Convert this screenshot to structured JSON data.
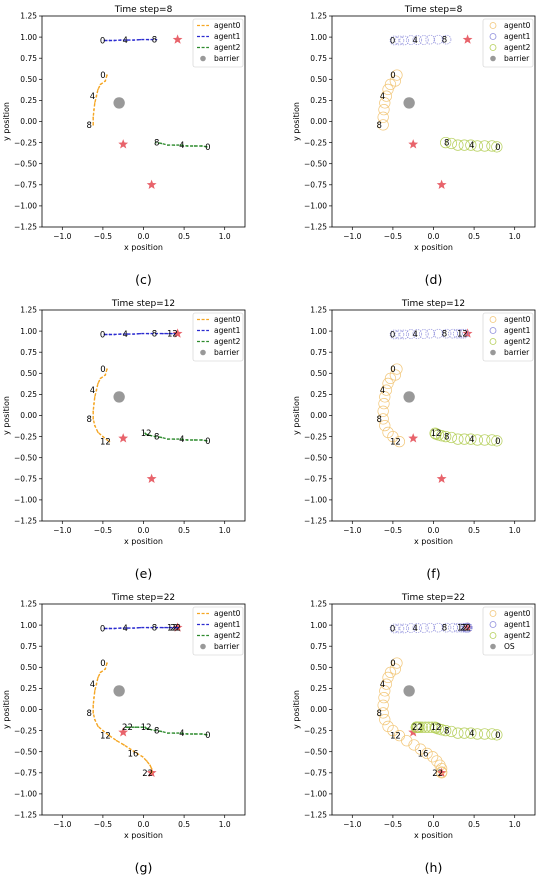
{
  "panels": [
    {
      "label": "(c)",
      "title": "Time step=8",
      "style": "line",
      "x_label": "x position",
      "y_label": "y position",
      "legend": [
        "agent0",
        "agent1",
        "agent2",
        "barrier"
      ]
    },
    {
      "label": "(d)",
      "title": "Time step=8",
      "style": "circle",
      "x_label": "x position",
      "y_label": "y position",
      "legend": [
        "agent0",
        "agent1",
        "agent2",
        "barrier"
      ]
    },
    {
      "label": "(e)",
      "title": "Time step=12",
      "style": "line",
      "x_label": "x position",
      "y_label": "y position",
      "legend": [
        "agent0",
        "agent1",
        "agent2",
        "barrier"
      ]
    },
    {
      "label": "(f)",
      "title": "Time step=12",
      "style": "circle",
      "x_label": "x position",
      "y_label": "y position",
      "legend": [
        "agent0",
        "agent1",
        "agent2",
        "barrier"
      ]
    },
    {
      "label": "(g)",
      "title": "Time step=22",
      "style": "line",
      "x_label": "x position",
      "y_label": "y position",
      "legend": [
        "agent0",
        "agent1",
        "agent2",
        "barrier"
      ]
    },
    {
      "label": "(h)",
      "title": "Time step=22",
      "style": "circle",
      "x_label": "x position",
      "y_label": "y position",
      "legend": [
        "agent0",
        "agent1",
        "agent2",
        "OS"
      ]
    }
  ],
  "colors": {
    "agent0": "#f5a623",
    "agent0_circle": "#f2c77a",
    "agent1": "#2b2bd0",
    "agent2": "#2e8b2e",
    "agent2_circle": "#b5cf5a",
    "barrier": "#999999",
    "goal": "#e8636b"
  },
  "chart_data": {
    "type": "line",
    "xlim": [
      -1.25,
      1.25
    ],
    "ylim": [
      -1.25,
      1.25
    ],
    "x_ticks": [
      "−1.0",
      "−0.5",
      "0.0",
      "0.5",
      "1.0"
    ],
    "y_ticks": [
      "1.25",
      "1.00",
      "0.75",
      "0.50",
      "0.25",
      "0.00",
      "−0.25",
      "−0.50",
      "−0.75",
      "−1.00",
      "−1.25"
    ],
    "x_tick_values": [
      -1.0,
      -0.5,
      0.0,
      0.5,
      1.0
    ],
    "y_tick_values": [
      1.25,
      1.0,
      0.75,
      0.5,
      0.25,
      0.0,
      -0.25,
      -0.5,
      -0.75,
      -1.0,
      -1.25
    ],
    "barrier": {
      "x": -0.3,
      "y": 0.22,
      "r": 0.07
    },
    "goals": [
      {
        "x": 0.42,
        "y": 0.97
      },
      {
        "x": -0.25,
        "y": -0.27
      },
      {
        "x": 0.1,
        "y": -0.75
      }
    ],
    "series": [
      {
        "name": "agent0",
        "points": [
          {
            "x": -0.45,
            "y": 0.55
          },
          {
            "x": -0.47,
            "y": 0.48
          },
          {
            "x": -0.53,
            "y": 0.44
          },
          {
            "x": -0.56,
            "y": 0.38
          },
          {
            "x": -0.58,
            "y": 0.3
          },
          {
            "x": -0.6,
            "y": 0.22
          },
          {
            "x": -0.61,
            "y": 0.14
          },
          {
            "x": -0.62,
            "y": 0.05
          },
          {
            "x": -0.62,
            "y": -0.04
          },
          {
            "x": -0.6,
            "y": -0.12
          },
          {
            "x": -0.56,
            "y": -0.2
          },
          {
            "x": -0.5,
            "y": -0.25
          },
          {
            "x": -0.42,
            "y": -0.31
          },
          {
            "x": -0.33,
            "y": -0.37
          },
          {
            "x": -0.24,
            "y": -0.42
          },
          {
            "x": -0.16,
            "y": -0.47
          },
          {
            "x": -0.08,
            "y": -0.52
          },
          {
            "x": -0.01,
            "y": -0.56
          },
          {
            "x": 0.04,
            "y": -0.61
          },
          {
            "x": 0.08,
            "y": -0.66
          },
          {
            "x": 0.1,
            "y": -0.7
          },
          {
            "x": 0.1,
            "y": -0.74
          },
          {
            "x": 0.1,
            "y": -0.75
          }
        ],
        "labels": [
          {
            "i": 0,
            "text": "0"
          },
          {
            "i": 4,
            "text": "4"
          },
          {
            "i": 8,
            "text": "8"
          },
          {
            "i": 12,
            "text": "12"
          },
          {
            "i": 16,
            "text": "16"
          },
          {
            "i": 22,
            "text": "22"
          }
        ]
      },
      {
        "name": "agent1",
        "points": [
          {
            "x": -0.48,
            "y": 0.96
          },
          {
            "x": -0.42,
            "y": 0.96
          },
          {
            "x": -0.36,
            "y": 0.96
          },
          {
            "x": -0.28,
            "y": 0.965
          },
          {
            "x": -0.2,
            "y": 0.965
          },
          {
            "x": -0.12,
            "y": 0.965
          },
          {
            "x": -0.04,
            "y": 0.97
          },
          {
            "x": 0.06,
            "y": 0.97
          },
          {
            "x": 0.16,
            "y": 0.97
          },
          {
            "x": 0.24,
            "y": 0.97
          },
          {
            "x": 0.3,
            "y": 0.97
          },
          {
            "x": 0.35,
            "y": 0.97
          },
          {
            "x": 0.38,
            "y": 0.97
          },
          {
            "x": 0.4,
            "y": 0.97
          },
          {
            "x": 0.41,
            "y": 0.97
          },
          {
            "x": 0.41,
            "y": 0.97
          },
          {
            "x": 0.42,
            "y": 0.97
          },
          {
            "x": 0.42,
            "y": 0.97
          },
          {
            "x": 0.42,
            "y": 0.97
          },
          {
            "x": 0.42,
            "y": 0.97
          },
          {
            "x": 0.42,
            "y": 0.97
          },
          {
            "x": 0.42,
            "y": 0.97
          },
          {
            "x": 0.42,
            "y": 0.97
          }
        ],
        "labels": [
          {
            "i": 0,
            "text": "0"
          },
          {
            "i": 4,
            "text": "4"
          },
          {
            "i": 8,
            "text": "8"
          },
          {
            "i": 12,
            "text": "12"
          },
          {
            "i": 22,
            "text": "22"
          }
        ]
      },
      {
        "name": "agent2",
        "points": [
          {
            "x": 0.78,
            "y": -0.3
          },
          {
            "x": 0.72,
            "y": -0.29
          },
          {
            "x": 0.63,
            "y": -0.29
          },
          {
            "x": 0.54,
            "y": -0.29
          },
          {
            "x": 0.46,
            "y": -0.28
          },
          {
            "x": 0.38,
            "y": -0.28
          },
          {
            "x": 0.3,
            "y": -0.28
          },
          {
            "x": 0.22,
            "y": -0.26
          },
          {
            "x": 0.15,
            "y": -0.25
          },
          {
            "x": 0.1,
            "y": -0.24
          },
          {
            "x": 0.06,
            "y": -0.23
          },
          {
            "x": 0.03,
            "y": -0.22
          },
          {
            "x": 0.02,
            "y": -0.21
          },
          {
            "x": -0.02,
            "y": -0.21
          },
          {
            "x": -0.06,
            "y": -0.21
          },
          {
            "x": -0.1,
            "y": -0.21
          },
          {
            "x": -0.14,
            "y": -0.21
          },
          {
            "x": -0.17,
            "y": -0.21
          },
          {
            "x": -0.19,
            "y": -0.21
          },
          {
            "x": -0.2,
            "y": -0.21
          },
          {
            "x": -0.21,
            "y": -0.21
          },
          {
            "x": -0.21,
            "y": -0.21
          },
          {
            "x": -0.21,
            "y": -0.21
          }
        ],
        "labels": [
          {
            "i": 0,
            "text": "0"
          },
          {
            "i": 4,
            "text": "4"
          },
          {
            "i": 8,
            "text": "8"
          },
          {
            "i": 12,
            "text": "12"
          },
          {
            "i": 22,
            "text": "22"
          }
        ]
      }
    ],
    "panel_steps": [
      8,
      8,
      12,
      12,
      22,
      22
    ]
  }
}
